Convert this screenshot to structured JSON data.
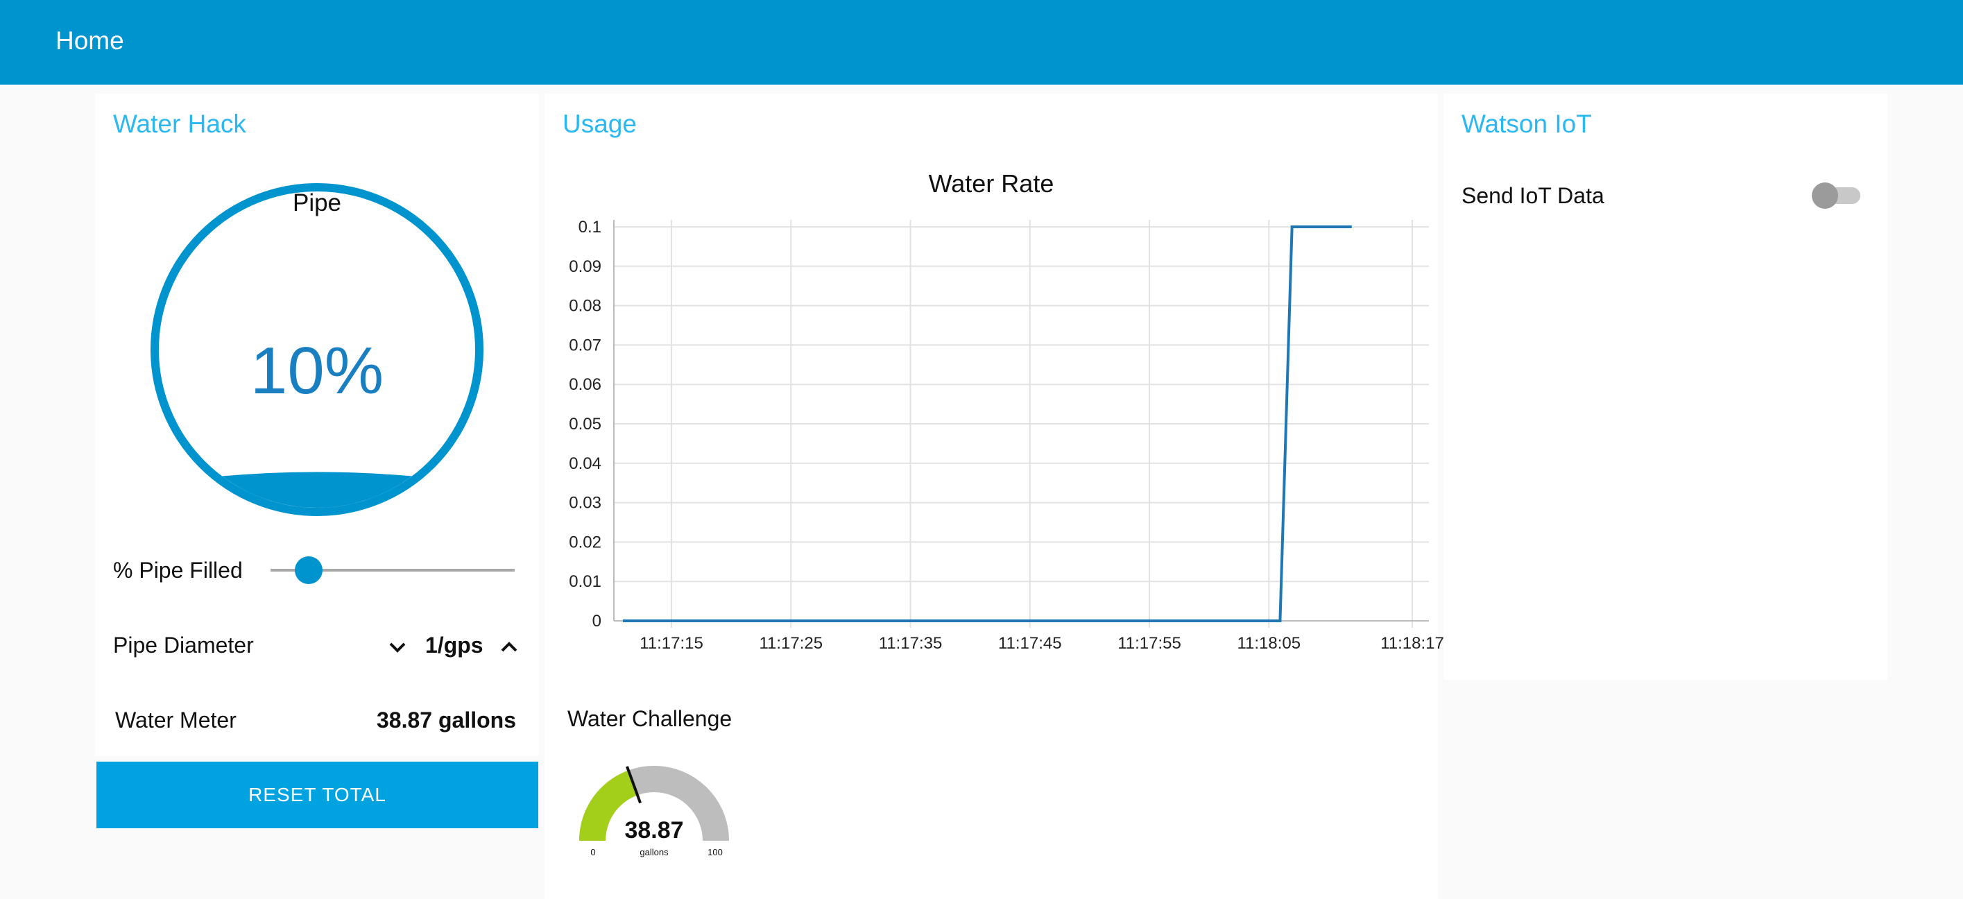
{
  "header": {
    "title": "Home"
  },
  "water_hack": {
    "title": "Water Hack",
    "pipe_gauge": {
      "label": "Pipe",
      "value_text": "10%",
      "fill_fraction": 0.1
    },
    "slider": {
      "label": "% Pipe Filled",
      "value": 10,
      "min": 0,
      "max": 100
    },
    "diameter": {
      "label": "Pipe Diameter",
      "value": "1/gps"
    },
    "meter": {
      "label": "Water Meter",
      "value": "38.87 gallons"
    },
    "reset_label": "RESET TOTAL"
  },
  "usage": {
    "title": "Usage",
    "chart_data": {
      "type": "line",
      "title": "Water Rate",
      "xlabel": "",
      "ylabel": "",
      "ylim": [
        0,
        0.1
      ],
      "y_ticks": [
        "0",
        "0.01",
        "0.02",
        "0.03",
        "0.04",
        "0.05",
        "0.06",
        "0.07",
        "0.08",
        "0.09",
        "0.1"
      ],
      "x_ticks": [
        "11:17:15",
        "11:17:25",
        "11:17:35",
        "11:17:45",
        "11:17:55",
        "11:18:05",
        "11:18:17"
      ],
      "grid": true,
      "series": [
        {
          "color": "#1f77b4",
          "x": [
            "11:17:15",
            "11:18:10",
            "11:18:11",
            "11:18:16"
          ],
          "values": [
            0,
            0,
            0.1,
            0.1
          ]
        }
      ]
    },
    "challenge": {
      "label": "Water Challenge",
      "value": 38.87,
      "value_text": "38.87",
      "units": "gallons",
      "min_label": "0",
      "max_label": "100",
      "min": 0,
      "max": 100,
      "fill_color": "#a3cf1a",
      "track_color": "#bdbdbd"
    }
  },
  "watson": {
    "title": "Watson IoT",
    "toggle": {
      "label": "Send IoT Data",
      "on": false
    }
  },
  "colors": {
    "accent": "#0094ce",
    "title": "#2bb8f0",
    "button": "#00a3e0"
  }
}
